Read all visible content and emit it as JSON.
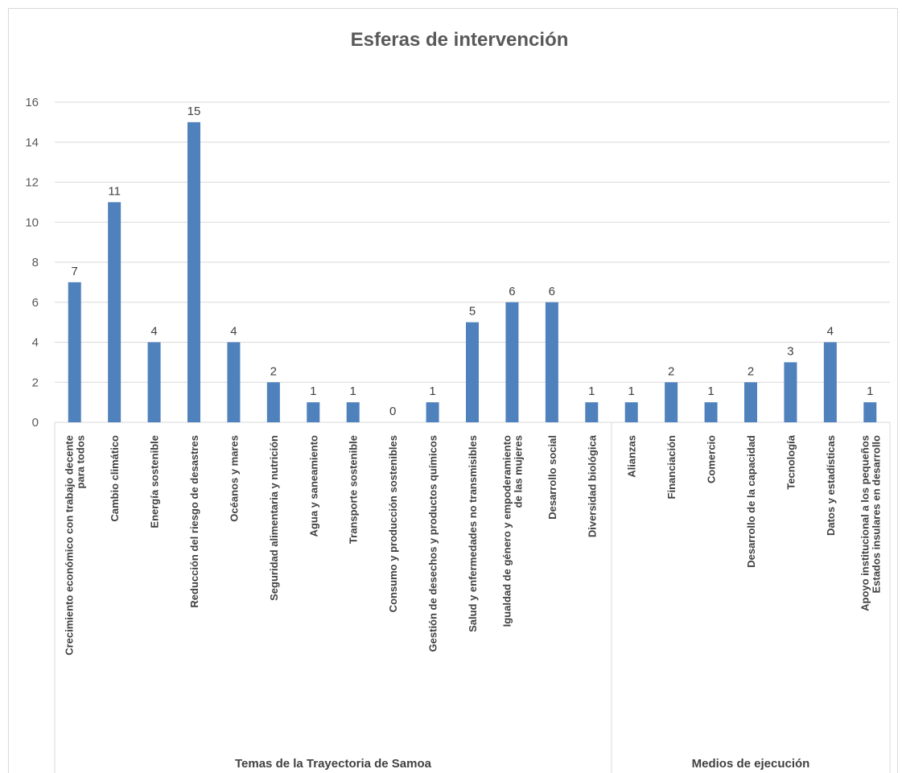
{
  "chart_data": {
    "type": "bar",
    "title": "Esferas de intervención",
    "ylim": [
      0,
      16
    ],
    "yticks": [
      "0",
      "2",
      "4",
      "6",
      "8",
      "10",
      "12",
      "14",
      "16"
    ],
    "grid": true,
    "legend": "none",
    "colors": {
      "bar": "#4f81bd",
      "grid": "#d9d9d9",
      "text": "#595959"
    },
    "categories": [
      [
        "Crecimiento económico con trabajo decente",
        "para todos"
      ],
      [
        "Cambio climático"
      ],
      [
        "Energía sostenible"
      ],
      [
        "Reducción del riesgo de desastres"
      ],
      [
        "Océanos y mares"
      ],
      [
        "Seguridad alimentaria y nutrición"
      ],
      [
        "Agua y saneamiento"
      ],
      [
        "Transporte sostenible"
      ],
      [
        "Consumo y producción sostenibles"
      ],
      [
        "Gestión de desechos y productos químicos"
      ],
      [
        "Salud y enfermedades no transmisibles"
      ],
      [
        "Igualdad de género y empoderamiento",
        "de las mujeres"
      ],
      [
        "Desarrollo social"
      ],
      [
        "Diversidad biológica"
      ],
      [
        "Alianzas"
      ],
      [
        "Financiación"
      ],
      [
        "Comercio"
      ],
      [
        "Desarrollo de la capacidad"
      ],
      [
        "Tecnología"
      ],
      [
        "Datos y estadísticas"
      ],
      [
        "Apoyo institucional a los pequeños",
        "Estados insulares en desarrollo"
      ]
    ],
    "values": [
      7,
      11,
      4,
      15,
      4,
      2,
      1,
      1,
      0,
      1,
      5,
      6,
      6,
      1,
      1,
      2,
      1,
      2,
      3,
      4,
      1
    ],
    "groups": [
      {
        "label": "Temas de la Trayectoria de Samoa",
        "count": 14
      },
      {
        "label": "Medios de ejecución",
        "count": 7
      }
    ]
  }
}
